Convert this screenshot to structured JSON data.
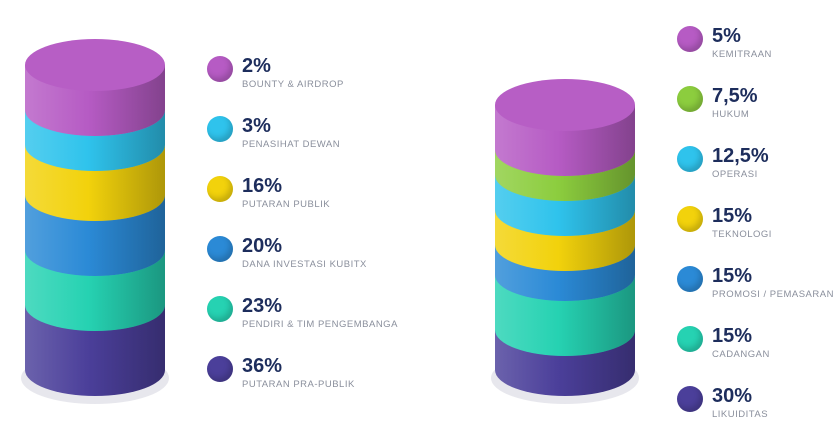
{
  "chart_data": [
    {
      "type": "pie",
      "categories": [
        "BOUNTY & AIRDROP",
        "PENASIHAT DEWAN",
        "PUTARAN PUBLIK",
        "DANA INVESTASI KUBITX",
        "PENDIRI & TIM PENGEMBANGA",
        "PUTARAN PRA-PUBLIK"
      ],
      "labels": [
        "2%",
        "3%",
        "16%",
        "20%",
        "23%",
        "36%"
      ],
      "values": [
        2,
        3,
        16,
        20,
        23,
        36
      ],
      "colors": [
        "#b65bc4",
        "#2fc3ec",
        "#f2d20c",
        "#2b8ad6",
        "#26d2b2",
        "#4b3f9a"
      ]
    },
    {
      "type": "pie",
      "categories": [
        "KEMITRAAN",
        "HUKUM",
        "OPERASI",
        "TEKNOLOGI",
        "PROMOSI / PEMASARAN",
        "CADANGAN",
        "LIKUIDITAS"
      ],
      "labels": [
        "5%",
        "7,5%",
        "12,5%",
        "15%",
        "15%",
        "15%",
        "30%"
      ],
      "values": [
        5,
        7.5,
        12.5,
        15,
        15,
        15,
        30
      ],
      "colors": [
        "#b65bc4",
        "#8ccd3e",
        "#2fc3ec",
        "#f2d20c",
        "#2b8ad6",
        "#26d2b2",
        "#4b3f9a"
      ]
    }
  ]
}
